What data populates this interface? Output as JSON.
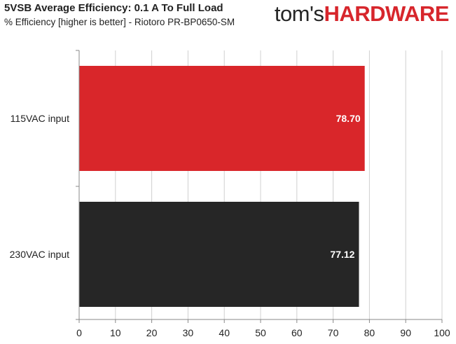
{
  "header": {
    "title": "5VSB Average Efficiency: 0.1 A To Full Load",
    "subtitle": "% Efficiency [higher is better] - Riotoro PR-BP0650-SM",
    "brand_left": "tom's",
    "brand_right": "HARDWARE"
  },
  "colors": {
    "brand_red": "#d7262c",
    "series_115": "#d9262a",
    "series_230": "#262626",
    "grid": "#d0d0d0"
  },
  "chart_data": {
    "type": "bar",
    "orientation": "horizontal",
    "title": "5VSB Average Efficiency: 0.1 A To Full Load",
    "subtitle": "% Efficiency [higher is better] - Riotoro PR-BP0650-SM",
    "categories": [
      "115VAC input",
      "230VAC input"
    ],
    "values": [
      78.7,
      77.12
    ],
    "value_labels": [
      "78.70",
      "77.12"
    ],
    "bar_colors": [
      "#d9262a",
      "#262626"
    ],
    "xlim": [
      0,
      100
    ],
    "xticks": [
      0,
      10,
      20,
      30,
      40,
      50,
      60,
      70,
      80,
      90,
      100
    ],
    "xlabel": "",
    "ylabel": "",
    "grid": true
  }
}
